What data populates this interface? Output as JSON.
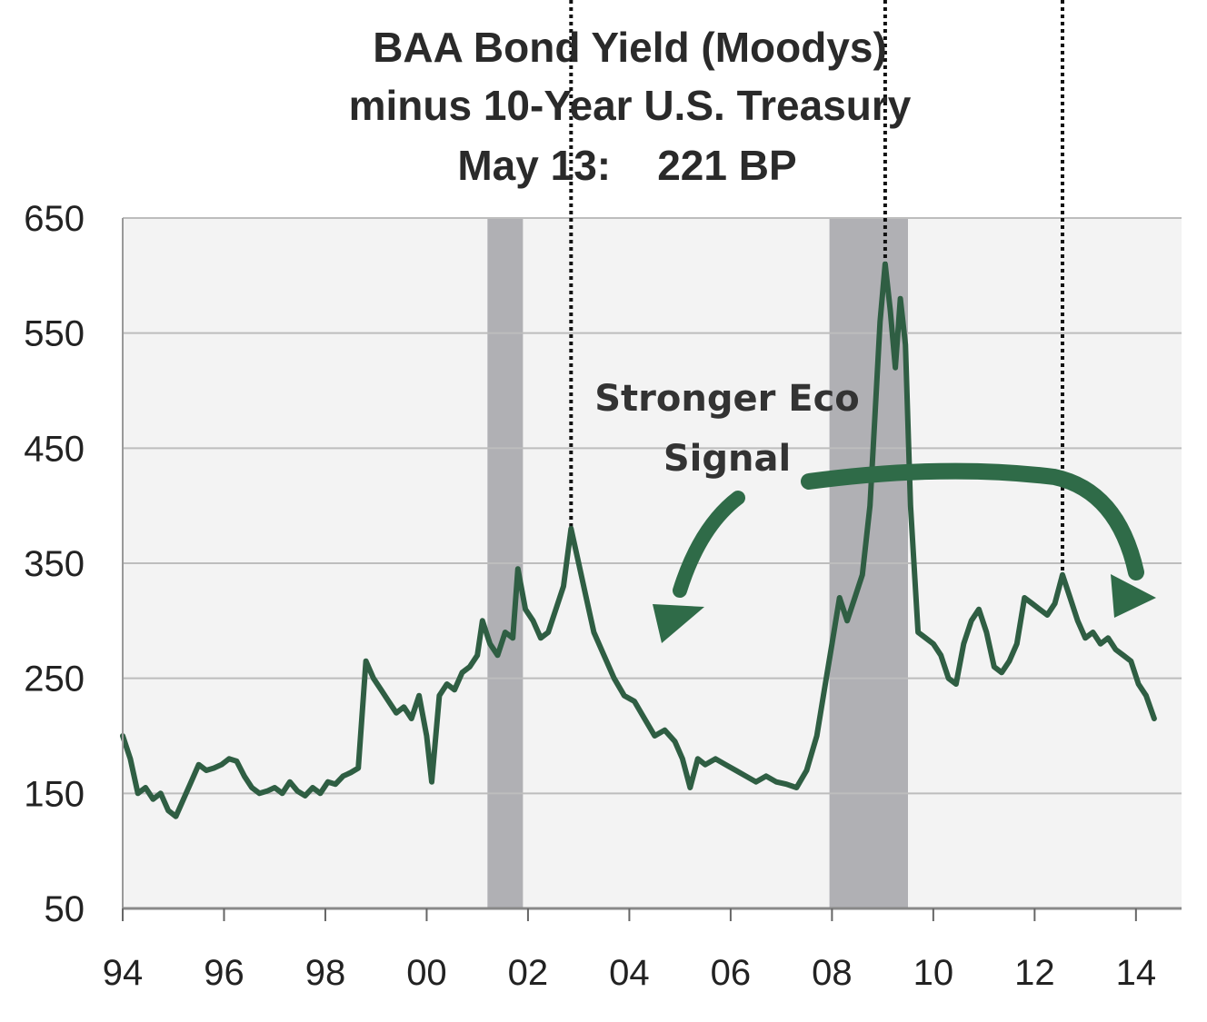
{
  "chart_data": {
    "type": "line",
    "title": "BAA Bond Yield (Moodys)",
    "subtitle": "minus 10-Year U.S. Treasury",
    "subtitle2": "May 13:    221 BP",
    "xlabel": "",
    "ylabel": "",
    "ylim": [
      50,
      650
    ],
    "xlim": [
      1994,
      2014.9
    ],
    "y_ticks": [
      "50",
      "150",
      "250",
      "350",
      "450",
      "550",
      "650"
    ],
    "x_ticks": [
      "94",
      "96",
      "98",
      "00",
      "02",
      "04",
      "06",
      "08",
      "10",
      "12",
      "14"
    ],
    "grid": true,
    "line_color": "#2f5e43",
    "shade_color": "#b0b0b4",
    "annotation": {
      "text_line1": "Stronger Eco",
      "text_line2": "Signal",
      "color": "#2f6b48"
    },
    "recessions": [
      {
        "start": 2001.2,
        "end": 2001.9
      },
      {
        "start": 2007.95,
        "end": 2009.5
      }
    ],
    "reference_dates": [
      2002.85,
      2009.05,
      2012.55
    ],
    "series": [
      {
        "values": [
          [
            1994.0,
            200
          ],
          [
            1994.15,
            180
          ],
          [
            1994.3,
            150
          ],
          [
            1994.45,
            155
          ],
          [
            1994.6,
            145
          ],
          [
            1994.75,
            150
          ],
          [
            1994.9,
            135
          ],
          [
            1995.05,
            130
          ],
          [
            1995.2,
            145
          ],
          [
            1995.35,
            160
          ],
          [
            1995.5,
            175
          ],
          [
            1995.65,
            170
          ],
          [
            1995.8,
            172
          ],
          [
            1995.95,
            175
          ],
          [
            1996.1,
            180
          ],
          [
            1996.25,
            178
          ],
          [
            1996.4,
            165
          ],
          [
            1996.55,
            155
          ],
          [
            1996.7,
            150
          ],
          [
            1996.85,
            152
          ],
          [
            1997.0,
            155
          ],
          [
            1997.15,
            150
          ],
          [
            1997.3,
            160
          ],
          [
            1997.45,
            152
          ],
          [
            1997.6,
            148
          ],
          [
            1997.75,
            155
          ],
          [
            1997.9,
            150
          ],
          [
            1998.05,
            160
          ],
          [
            1998.2,
            158
          ],
          [
            1998.35,
            165
          ],
          [
            1998.5,
            168
          ],
          [
            1998.65,
            172
          ],
          [
            1998.8,
            265
          ],
          [
            1998.95,
            250
          ],
          [
            1999.1,
            240
          ],
          [
            1999.25,
            230
          ],
          [
            1999.4,
            220
          ],
          [
            1999.55,
            225
          ],
          [
            1999.7,
            215
          ],
          [
            1999.85,
            235
          ],
          [
            2000.0,
            200
          ],
          [
            2000.1,
            160
          ],
          [
            2000.25,
            235
          ],
          [
            2000.4,
            245
          ],
          [
            2000.55,
            240
          ],
          [
            2000.7,
            255
          ],
          [
            2000.85,
            260
          ],
          [
            2001.0,
            270
          ],
          [
            2001.1,
            300
          ],
          [
            2001.25,
            280
          ],
          [
            2001.4,
            270
          ],
          [
            2001.55,
            290
          ],
          [
            2001.7,
            285
          ],
          [
            2001.8,
            345
          ],
          [
            2001.95,
            310
          ],
          [
            2002.1,
            300
          ],
          [
            2002.25,
            285
          ],
          [
            2002.4,
            290
          ],
          [
            2002.55,
            310
          ],
          [
            2002.7,
            330
          ],
          [
            2002.85,
            380
          ],
          [
            2003.0,
            350
          ],
          [
            2003.15,
            320
          ],
          [
            2003.3,
            290
          ],
          [
            2003.5,
            270
          ],
          [
            2003.7,
            250
          ],
          [
            2003.9,
            235
          ],
          [
            2004.1,
            230
          ],
          [
            2004.3,
            215
          ],
          [
            2004.5,
            200
          ],
          [
            2004.7,
            205
          ],
          [
            2004.9,
            195
          ],
          [
            2005.05,
            180
          ],
          [
            2005.2,
            155
          ],
          [
            2005.35,
            180
          ],
          [
            2005.5,
            175
          ],
          [
            2005.7,
            180
          ],
          [
            2005.9,
            175
          ],
          [
            2006.1,
            170
          ],
          [
            2006.3,
            165
          ],
          [
            2006.5,
            160
          ],
          [
            2006.7,
            165
          ],
          [
            2006.9,
            160
          ],
          [
            2007.1,
            158
          ],
          [
            2007.3,
            155
          ],
          [
            2007.5,
            170
          ],
          [
            2007.7,
            200
          ],
          [
            2007.85,
            240
          ],
          [
            2008.0,
            280
          ],
          [
            2008.15,
            320
          ],
          [
            2008.3,
            300
          ],
          [
            2008.45,
            320
          ],
          [
            2008.6,
            340
          ],
          [
            2008.75,
            400
          ],
          [
            2008.85,
            480
          ],
          [
            2008.95,
            560
          ],
          [
            2009.05,
            610
          ],
          [
            2009.15,
            570
          ],
          [
            2009.25,
            520
          ],
          [
            2009.35,
            580
          ],
          [
            2009.45,
            540
          ],
          [
            2009.55,
            400
          ],
          [
            2009.7,
            290
          ],
          [
            2009.85,
            285
          ],
          [
            2010.0,
            280
          ],
          [
            2010.15,
            270
          ],
          [
            2010.3,
            250
          ],
          [
            2010.45,
            245
          ],
          [
            2010.6,
            280
          ],
          [
            2010.75,
            300
          ],
          [
            2010.9,
            310
          ],
          [
            2011.05,
            290
          ],
          [
            2011.2,
            260
          ],
          [
            2011.35,
            255
          ],
          [
            2011.5,
            265
          ],
          [
            2011.65,
            280
          ],
          [
            2011.8,
            320
          ],
          [
            2011.95,
            315
          ],
          [
            2012.1,
            310
          ],
          [
            2012.25,
            305
          ],
          [
            2012.4,
            315
          ],
          [
            2012.55,
            340
          ],
          [
            2012.7,
            320
          ],
          [
            2012.85,
            300
          ],
          [
            2013.0,
            285
          ],
          [
            2013.15,
            290
          ],
          [
            2013.3,
            280
          ],
          [
            2013.45,
            285
          ],
          [
            2013.6,
            275
          ],
          [
            2013.75,
            270
          ],
          [
            2013.9,
            265
          ],
          [
            2014.05,
            245
          ],
          [
            2014.2,
            235
          ],
          [
            2014.36,
            215
          ]
        ]
      }
    ]
  }
}
